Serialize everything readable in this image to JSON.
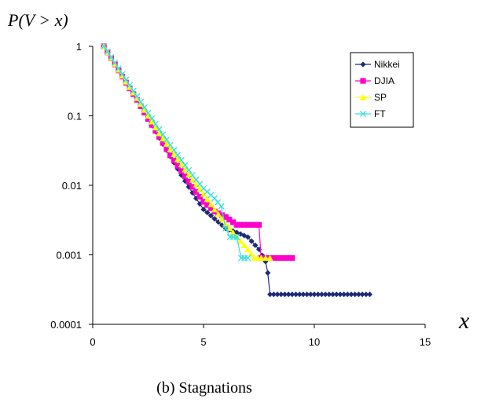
{
  "chart_data": {
    "type": "line",
    "title": "",
    "ylabel": "P(V > x)",
    "xlabel": "x",
    "caption": "(b) Stagnations",
    "xscale": "linear",
    "yscale": "log",
    "xlim": [
      0,
      15
    ],
    "ylim": [
      0.0001,
      1
    ],
    "xticks": [
      0,
      5,
      10,
      15
    ],
    "xtick_labels": [
      "0",
      "5",
      "10",
      "15"
    ],
    "yticks": [
      1,
      0.1,
      0.01,
      0.001,
      0.0001
    ],
    "ytick_labels": [
      "1",
      "0.1",
      "0.01",
      "0.001",
      "0.0001"
    ],
    "grid": false,
    "legend_position": "top-right",
    "series": [
      {
        "name": "Nikkei",
        "color": "#1f2a7a",
        "marker": "diamond",
        "x": [
          0.5,
          1.0,
          1.5,
          2.0,
          2.5,
          3.0,
          3.5,
          4.0,
          4.5,
          5.0,
          5.5,
          6.0,
          6.5,
          7.0,
          7.5,
          7.8,
          7.9,
          8.0,
          8.5,
          9.0,
          9.5,
          10.0,
          10.5,
          11.0,
          11.5,
          12.0,
          12.5
        ],
        "y": [
          1.0,
          0.55,
          0.3,
          0.17,
          0.09,
          0.048,
          0.026,
          0.014,
          0.0078,
          0.0045,
          0.0033,
          0.0024,
          0.0021,
          0.0018,
          0.0012,
          0.0008,
          0.00055,
          0.00027,
          0.00027,
          0.00027,
          0.00027,
          0.00027,
          0.00027,
          0.00027,
          0.00027,
          0.00027,
          0.00027
        ]
      },
      {
        "name": "DJIA",
        "color": "#ff00cc",
        "marker": "square",
        "x": [
          0.5,
          1.0,
          1.5,
          2.0,
          2.5,
          3.0,
          3.5,
          4.0,
          4.5,
          5.0,
          5.5,
          6.0,
          6.5,
          7.0,
          7.5,
          7.6,
          8.0,
          8.5,
          9.0
        ],
        "y": [
          1.0,
          0.55,
          0.3,
          0.17,
          0.09,
          0.05,
          0.027,
          0.016,
          0.0095,
          0.0058,
          0.0042,
          0.0035,
          0.0027,
          0.0027,
          0.0027,
          0.0009,
          0.0009,
          0.0009,
          0.0009
        ]
      },
      {
        "name": "SP",
        "color": "#ffff00",
        "marker": "triangle",
        "x": [
          0.5,
          1.0,
          1.5,
          2.0,
          2.5,
          3.0,
          3.5,
          4.0,
          4.5,
          5.0,
          5.5,
          6.0,
          6.5,
          7.0,
          7.3,
          7.6,
          8.0
        ],
        "y": [
          1.0,
          0.56,
          0.31,
          0.18,
          0.1,
          0.056,
          0.033,
          0.02,
          0.012,
          0.0075,
          0.0045,
          0.0028,
          0.0018,
          0.0012,
          0.0009,
          0.0009,
          0.0009
        ]
      },
      {
        "name": "FT",
        "color": "#33e0e0",
        "marker": "x",
        "x": [
          0.5,
          1.0,
          1.5,
          2.0,
          2.5,
          3.0,
          3.5,
          4.0,
          4.5,
          5.0,
          5.5,
          5.8,
          6.0,
          6.2,
          6.5,
          6.7,
          7.0
        ],
        "y": [
          1.0,
          0.58,
          0.33,
          0.19,
          0.11,
          0.064,
          0.038,
          0.023,
          0.014,
          0.009,
          0.0065,
          0.005,
          0.0024,
          0.0018,
          0.0018,
          0.0009,
          0.0009
        ]
      }
    ]
  }
}
